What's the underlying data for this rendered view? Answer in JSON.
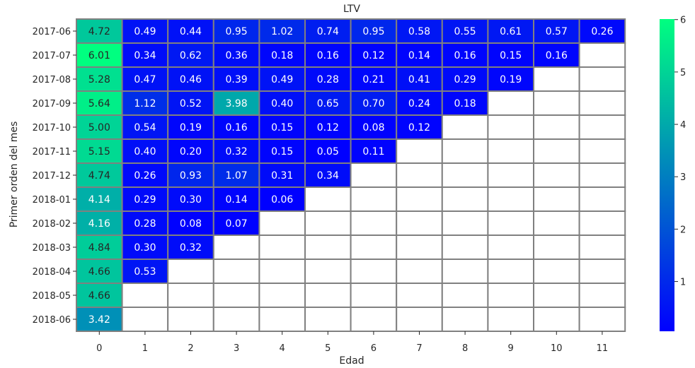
{
  "chart_data": {
    "type": "heatmap",
    "title": "LTV",
    "xlabel": "Edad",
    "ylabel": "Primer orden del mes",
    "x_categories": [
      "0",
      "1",
      "2",
      "3",
      "4",
      "5",
      "6",
      "7",
      "8",
      "9",
      "10",
      "11"
    ],
    "y_categories": [
      "2017-06",
      "2017-07",
      "2017-08",
      "2017-09",
      "2017-10",
      "2017-11",
      "2017-12",
      "2018-01",
      "2018-02",
      "2018-03",
      "2018-04",
      "2018-05",
      "2018-06"
    ],
    "values": [
      [
        "4.72",
        "0.49",
        "0.44",
        "0.95",
        "1.02",
        "0.74",
        "0.95",
        "0.58",
        "0.55",
        "0.61",
        "0.57",
        "0.26"
      ],
      [
        "6.01",
        "0.34",
        "0.62",
        "0.36",
        "0.18",
        "0.16",
        "0.12",
        "0.14",
        "0.16",
        "0.15",
        "0.16",
        null
      ],
      [
        "5.28",
        "0.47",
        "0.46",
        "0.39",
        "0.49",
        "0.28",
        "0.21",
        "0.41",
        "0.29",
        "0.19",
        null,
        null
      ],
      [
        "5.64",
        "1.12",
        "0.52",
        "3.98",
        "0.40",
        "0.65",
        "0.70",
        "0.24",
        "0.18",
        null,
        null,
        null
      ],
      [
        "5.00",
        "0.54",
        "0.19",
        "0.16",
        "0.15",
        "0.12",
        "0.08",
        "0.12",
        null,
        null,
        null,
        null
      ],
      [
        "5.15",
        "0.40",
        "0.20",
        "0.32",
        "0.15",
        "0.05",
        "0.11",
        null,
        null,
        null,
        null,
        null
      ],
      [
        "4.74",
        "0.26",
        "0.93",
        "1.07",
        "0.31",
        "0.34",
        null,
        null,
        null,
        null,
        null,
        null
      ],
      [
        "4.14",
        "0.29",
        "0.30",
        "0.14",
        "0.06",
        null,
        null,
        null,
        null,
        null,
        null,
        null
      ],
      [
        "4.16",
        "0.28",
        "0.08",
        "0.07",
        null,
        null,
        null,
        null,
        null,
        null,
        null,
        null
      ],
      [
        "4.84",
        "0.30",
        "0.32",
        null,
        null,
        null,
        null,
        null,
        null,
        null,
        null,
        null
      ],
      [
        "4.66",
        "0.53",
        null,
        null,
        null,
        null,
        null,
        null,
        null,
        null,
        null,
        null
      ],
      [
        "4.66",
        null,
        null,
        null,
        null,
        null,
        null,
        null,
        null,
        null,
        null,
        null
      ],
      [
        "3.42",
        null,
        null,
        null,
        null,
        null,
        null,
        null,
        null,
        null,
        null,
        null
      ]
    ],
    "colorbar": {
      "colormap": "winter",
      "min": 0.05,
      "max": 6.01,
      "ticks": [
        "1",
        "2",
        "3",
        "4",
        "5",
        "6"
      ]
    },
    "grid": true,
    "legend": "right"
  }
}
